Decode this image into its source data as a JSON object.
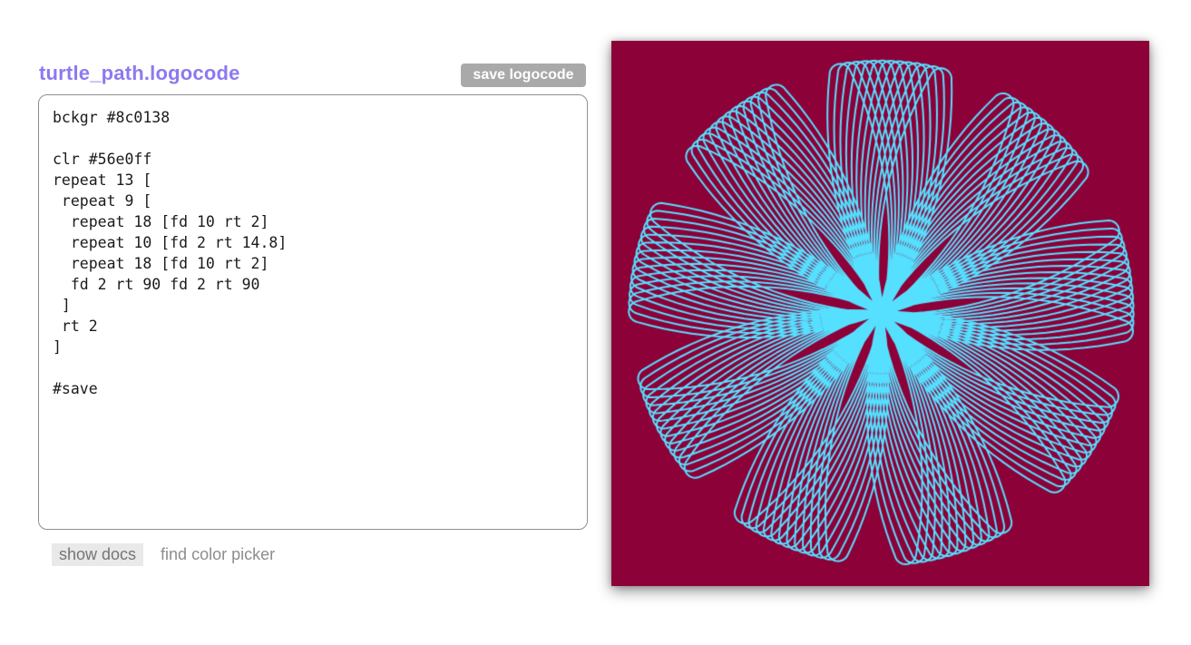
{
  "editor": {
    "filename": "turtle_path.logocode",
    "save_button_label": "save logocode",
    "code": "bckgr #8c0138\n\nclr #56e0ff\nrepeat 13 [\n repeat 9 [\n  repeat 18 [fd 10 rt 2]\n  repeat 10 [fd 2 rt 14.8]\n  repeat 18 [fd 10 rt 2]\n  fd 2 rt 90 fd 2 rt 90\n ]\n rt 2\n]\n\n#save",
    "footer": {
      "show_docs_label": "show docs",
      "find_color_picker_label": "find color picker"
    }
  },
  "colors": {
    "title_text": "#8b7af0",
    "save_button_bg": "#a9a9a9",
    "save_button_text": "#ffffff",
    "show_docs_bg": "#e9e9e9",
    "footer_text": "#7d7d7d",
    "code_text": "#1b1b1b",
    "canvas_background": "#8c0138",
    "pen_color": "#56e0ff"
  }
}
